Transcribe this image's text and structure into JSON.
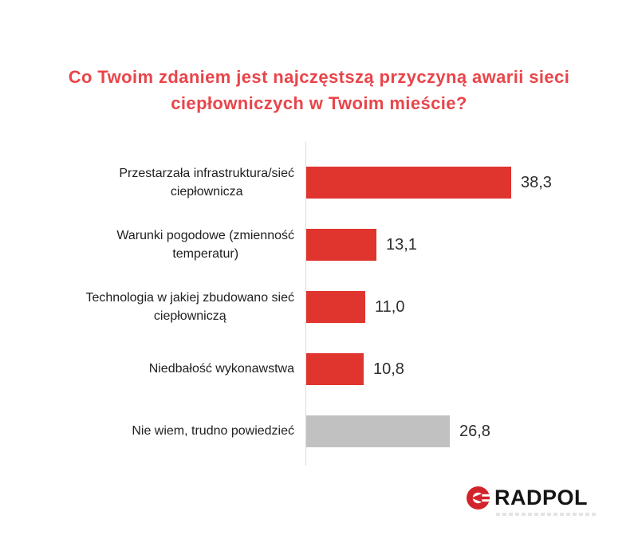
{
  "title": {
    "text": "Co Twoim zdaniem jest najczęstszą przyczyną awarii sieci\nciepłowniczych w Twoim mieście?",
    "color": "#e8454a"
  },
  "chart_data": {
    "type": "bar",
    "orientation": "horizontal",
    "title": "Co Twoim zdaniem jest najczęstszą przyczyną awarii sieci ciepłowniczych w Twoim mieście?",
    "categories": [
      "Przestarzała infrastruktura/sieć\nciepłownicza",
      "Warunki pogodowe (zmienność\ntemperatur)",
      "Technologia w jakiej zbudowano sieć\nciepłowniczą",
      "Niedbałość wykonawstwa",
      "Nie wiem, trudno powiedzieć"
    ],
    "values": [
      38.3,
      13.1,
      11.0,
      10.8,
      26.8
    ],
    "value_labels": [
      "38,3",
      "13,1",
      "11,0",
      "10,8",
      "26,8"
    ],
    "bar_colors": [
      "#e0342f",
      "#e0342f",
      "#e0342f",
      "#e0342f",
      "#c1c1c1"
    ],
    "xlabel": "",
    "ylabel": "",
    "xlim": [
      0,
      40
    ],
    "grid": false,
    "legend": false,
    "axis_line_color": "#dadada"
  },
  "logo": {
    "text": "RADPOL",
    "text_color": "#151515",
    "mark_color": "#d2232a"
  }
}
